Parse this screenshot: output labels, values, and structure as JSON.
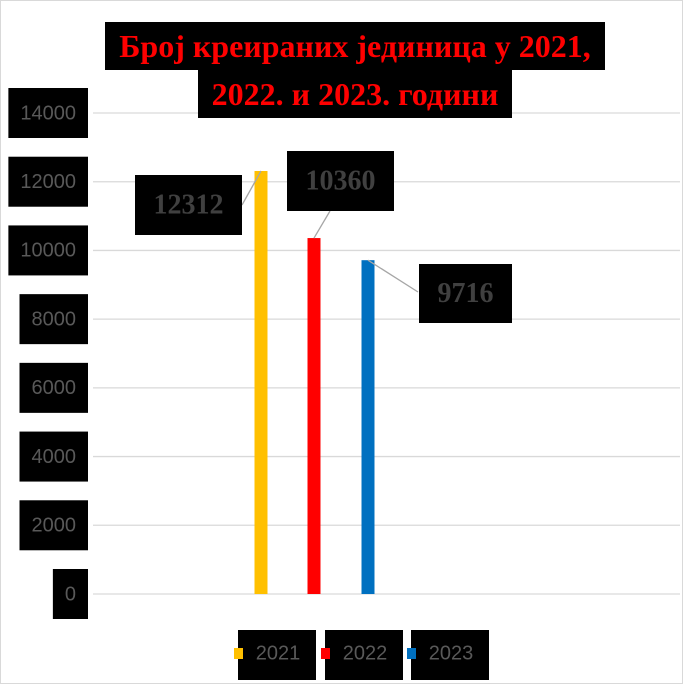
{
  "chart_data": {
    "type": "bar",
    "title": "Број креираних јединица у 2021, 2022. и 2023. години",
    "categories": [
      null
    ],
    "series": [
      {
        "name": "2021",
        "color": "#ffc000",
        "values": [
          12312
        ]
      },
      {
        "name": "2022",
        "color": "#ff0000",
        "values": [
          10360
        ]
      },
      {
        "name": "2023",
        "color": "#0070c0",
        "values": [
          9716
        ]
      }
    ],
    "ylim": [
      0,
      14000
    ],
    "yticks": [
      0,
      2000,
      4000,
      6000,
      8000,
      10000,
      12000,
      14000
    ],
    "grid": true,
    "legend": "bottom"
  }
}
